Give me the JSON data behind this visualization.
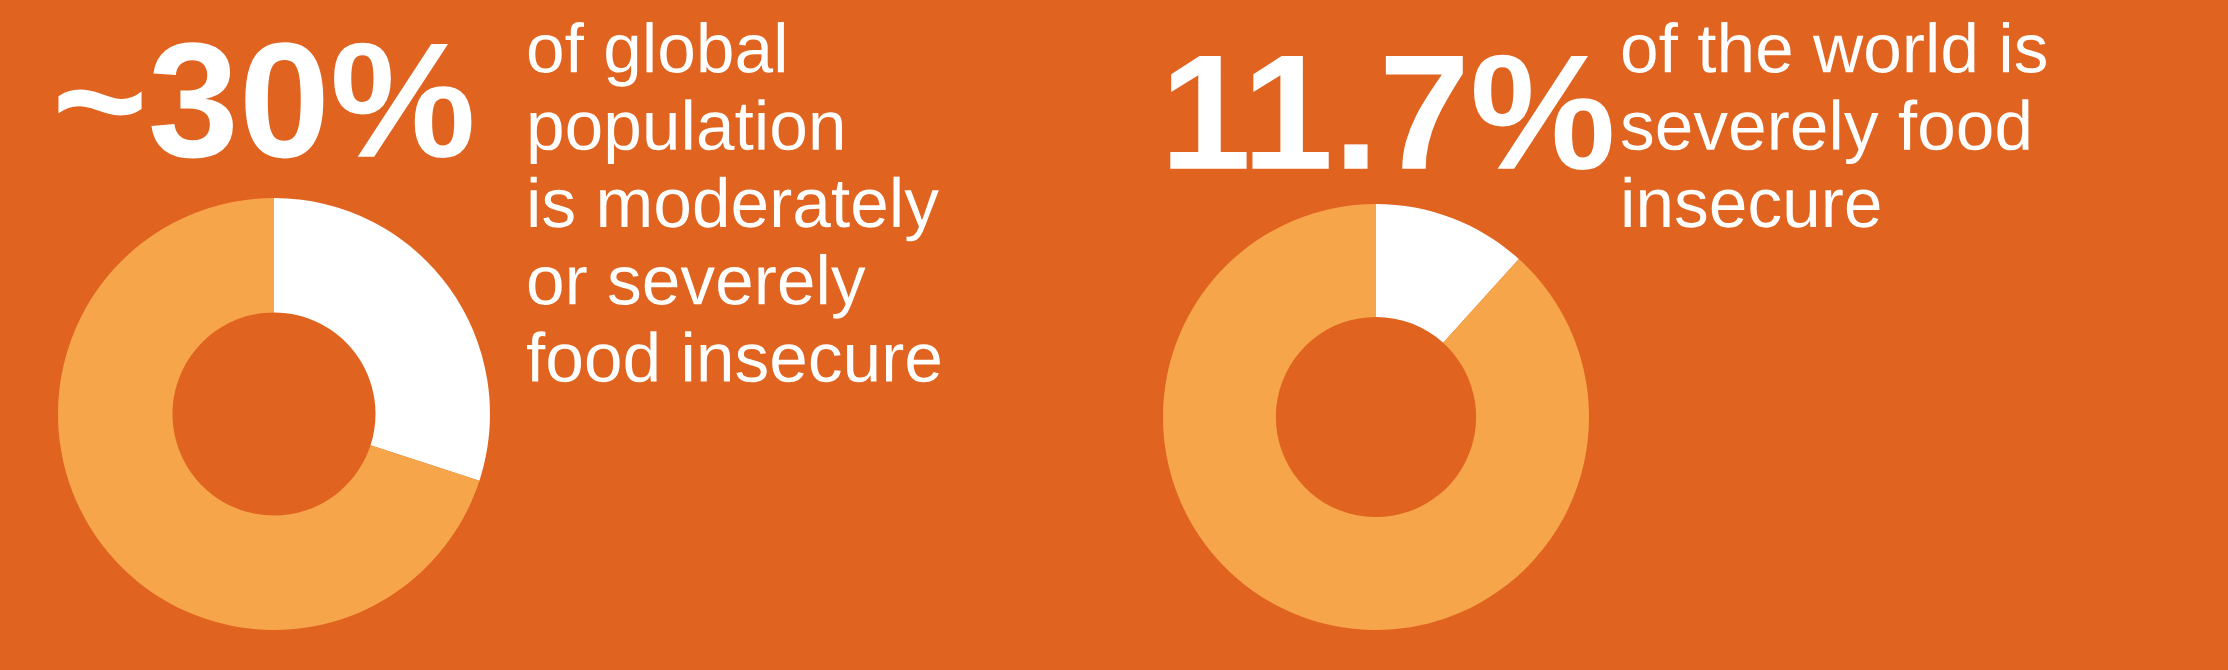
{
  "chart_data": [
    {
      "type": "donut",
      "title": "~30%",
      "annotations": [
        "of global\npopulation\nis moderately\nor severely\nfood insecure"
      ],
      "categories": [
        null,
        null
      ],
      "values": [
        30,
        70
      ],
      "colors": [
        "#ffffff",
        "#f7a54b"
      ]
    },
    {
      "type": "donut",
      "title": "11.7%",
      "annotations": [
        "of the world is\nseverely food\ninsecure"
      ],
      "categories": [
        null,
        null
      ],
      "values": [
        11.7,
        88.3
      ],
      "colors": [
        "#ffffff",
        "#f7a54b"
      ]
    }
  ]
}
